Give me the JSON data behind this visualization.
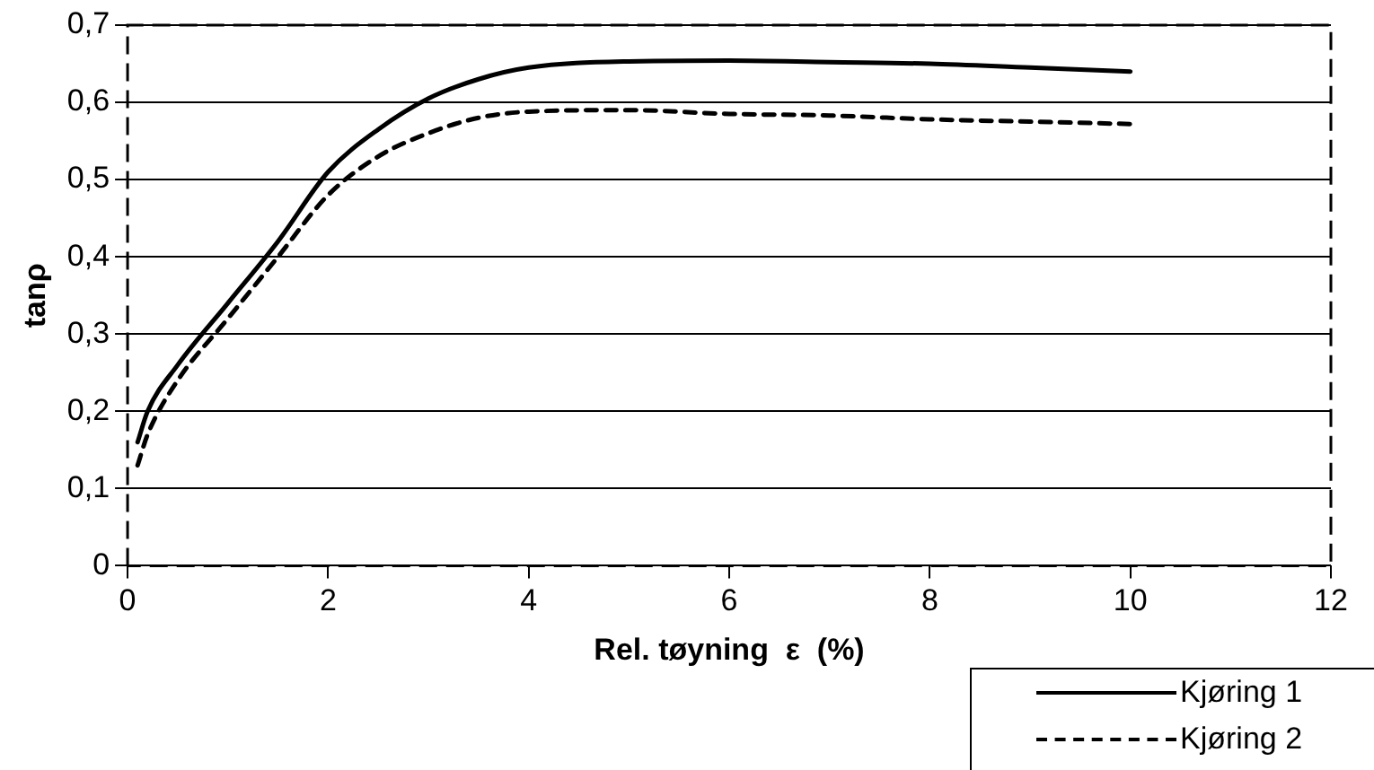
{
  "chart_data": {
    "type": "line",
    "xlabel": "Rel. tøyning  ε  (%)",
    "ylabel": "tanρ",
    "xlim": [
      0,
      12
    ],
    "xticks": [
      0,
      2,
      4,
      6,
      8,
      10,
      12
    ],
    "ylim": [
      0,
      0.7
    ],
    "yticks": [
      0,
      {
        "value": 0.1,
        "label": "0,1"
      },
      {
        "value": 0.2,
        "label": "0,2"
      },
      {
        "value": 0.3,
        "label": "0,3"
      },
      {
        "value": 0.4,
        "label": "0,4"
      },
      {
        "value": 0.5,
        "label": "0,5"
      },
      {
        "value": 0.6,
        "label": "0,6"
      },
      {
        "value": 0.7,
        "label": "0,7"
      }
    ],
    "grid": "y",
    "legend": "bottom right",
    "series": [
      {
        "name": "Kjøring 1",
        "color": "#000000",
        "line_style": "solid",
        "x": [
          0.1,
          0.2,
          0.5,
          1,
          1.5,
          2,
          2.5,
          3,
          3.5,
          4,
          5,
          6,
          7,
          8,
          9,
          10
        ],
        "values": [
          0.16,
          0.2,
          0.26,
          0.34,
          0.42,
          0.51,
          0.565,
          0.605,
          0.63,
          0.645,
          0.653,
          0.654,
          0.652,
          0.65,
          0.645,
          0.64
        ]
      },
      {
        "name": "Kjøring 2",
        "color": "#000000",
        "line_style": "dashed",
        "x": [
          0.1,
          0.2,
          0.5,
          1,
          1.5,
          2,
          2.5,
          3,
          3.5,
          4,
          5,
          6,
          7,
          8,
          9,
          10
        ],
        "values": [
          0.13,
          0.17,
          0.24,
          0.32,
          0.4,
          0.48,
          0.53,
          0.56,
          0.58,
          0.588,
          0.59,
          0.585,
          0.583,
          0.578,
          0.575,
          0.572
        ]
      }
    ]
  }
}
